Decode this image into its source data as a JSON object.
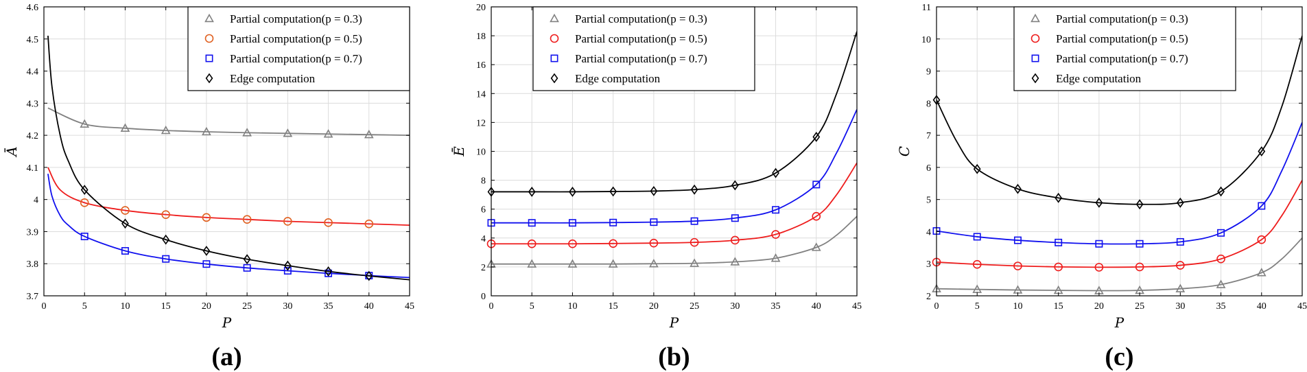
{
  "chart_data": [
    {
      "type": "line",
      "caption": "(a)",
      "xlabel": "P",
      "ylabel": "Ā",
      "xlim": [
        0,
        45
      ],
      "ylim": [
        3.7,
        4.6
      ],
      "xticks": [
        0,
        5,
        10,
        15,
        20,
        25,
        30,
        35,
        40,
        45
      ],
      "yticks": [
        3.7,
        3.8,
        3.9,
        4,
        4.1,
        4.2,
        4.3,
        4.4,
        4.5,
        4.6
      ],
      "ytick_labels": [
        "3.7",
        "3.8",
        "3.9",
        "4",
        "4.1",
        "4.2",
        "4.3",
        "4.4",
        "4.5",
        "4.6"
      ],
      "grid": true,
      "legend_position": "top-right",
      "series": [
        {
          "name": "Partial computation(p = 0.3)",
          "color": "#808080",
          "marker": "triangle",
          "x": [
            0.5,
            5,
            10,
            15,
            20,
            25,
            30,
            35,
            40,
            45
          ],
          "y": [
            4.285,
            4.235,
            4.222,
            4.215,
            4.211,
            4.208,
            4.206,
            4.204,
            4.202,
            4.2
          ],
          "marker_x": [
            5,
            10,
            15,
            20,
            25,
            30,
            35,
            40
          ]
        },
        {
          "name": "Partial computation(p = 0.5)",
          "color": "#ee1c1c",
          "marker_color": "#e06020",
          "marker": "circle",
          "x": [
            0.5,
            2,
            5,
            10,
            15,
            20,
            25,
            30,
            35,
            40,
            45
          ],
          "y": [
            4.1,
            4.03,
            3.99,
            3.966,
            3.953,
            3.944,
            3.938,
            3.932,
            3.928,
            3.924,
            3.92
          ],
          "marker_x": [
            5,
            10,
            15,
            20,
            25,
            30,
            35,
            40
          ]
        },
        {
          "name": "Partial computation(p = 0.7)",
          "color": "#1010ee",
          "marker": "square",
          "x": [
            0.5,
            1,
            2,
            3,
            5,
            10,
            15,
            20,
            25,
            30,
            35,
            40,
            45
          ],
          "y": [
            4.08,
            4.01,
            3.95,
            3.92,
            3.885,
            3.84,
            3.815,
            3.799,
            3.787,
            3.778,
            3.77,
            3.763,
            3.757
          ],
          "marker_x": [
            5,
            10,
            15,
            20,
            25,
            30,
            35,
            40
          ]
        },
        {
          "name": "Edge computation",
          "color": "#000000",
          "marker": "diamond",
          "x": [
            0.5,
            1,
            2,
            3,
            5,
            10,
            15,
            20,
            25,
            30,
            35,
            40,
            45
          ],
          "y": [
            4.51,
            4.35,
            4.2,
            4.12,
            4.03,
            3.925,
            3.875,
            3.84,
            3.814,
            3.794,
            3.776,
            3.762,
            3.75
          ],
          "marker_x": [
            5,
            10,
            15,
            20,
            25,
            30,
            35,
            40
          ]
        }
      ]
    },
    {
      "type": "line",
      "caption": "(b)",
      "xlabel": "P",
      "ylabel": "Ē",
      "xlim": [
        0,
        45
      ],
      "ylim": [
        0,
        20
      ],
      "xticks": [
        0,
        5,
        10,
        15,
        20,
        25,
        30,
        35,
        40,
        45
      ],
      "yticks": [
        0,
        2,
        4,
        6,
        8,
        10,
        12,
        14,
        16,
        18,
        20
      ],
      "ytick_labels": [
        "0",
        "2",
        "4",
        "6",
        "8",
        "10",
        "12",
        "14",
        "16",
        "18",
        "20"
      ],
      "grid": true,
      "legend_position": "top-left",
      "series": [
        {
          "name": "Partial computation(p = 0.3)",
          "color": "#808080",
          "marker": "triangle",
          "x": [
            0,
            5,
            10,
            15,
            20,
            25,
            30,
            35,
            40,
            42.5,
            45
          ],
          "y": [
            2.2,
            2.2,
            2.2,
            2.2,
            2.22,
            2.25,
            2.35,
            2.6,
            3.35,
            4.2,
            5.5
          ],
          "marker_x": [
            0,
            5,
            10,
            15,
            20,
            25,
            30,
            35,
            40
          ]
        },
        {
          "name": "Partial computation(p = 0.5)",
          "color": "#ee1c1c",
          "marker": "circle",
          "x": [
            0,
            5,
            10,
            15,
            20,
            25,
            30,
            35,
            40,
            42.5,
            45
          ],
          "y": [
            3.6,
            3.6,
            3.6,
            3.62,
            3.65,
            3.7,
            3.85,
            4.25,
            5.5,
            7,
            9.2
          ],
          "marker_x": [
            0,
            5,
            10,
            15,
            20,
            25,
            30,
            35,
            40
          ]
        },
        {
          "name": "Partial computation(p = 0.7)",
          "color": "#1010ee",
          "marker": "square",
          "x": [
            0,
            5,
            10,
            15,
            20,
            25,
            30,
            35,
            40,
            42.5,
            45
          ],
          "y": [
            5.05,
            5.05,
            5.05,
            5.07,
            5.1,
            5.17,
            5.38,
            5.95,
            7.7,
            9.9,
            12.9
          ],
          "marker_x": [
            0,
            5,
            10,
            15,
            20,
            25,
            30,
            35,
            40
          ]
        },
        {
          "name": "Edge computation",
          "color": "#000000",
          "marker": "diamond",
          "x": [
            0,
            5,
            10,
            15,
            20,
            25,
            30,
            35,
            40,
            42.5,
            45
          ],
          "y": [
            7.2,
            7.2,
            7.2,
            7.22,
            7.25,
            7.35,
            7.65,
            8.5,
            11,
            14,
            18.3
          ],
          "marker_x": [
            0,
            5,
            10,
            15,
            20,
            25,
            30,
            35,
            40
          ]
        }
      ]
    },
    {
      "type": "line",
      "caption": "(c)",
      "xlabel": "P",
      "ylabel": "C",
      "xlim": [
        0,
        45
      ],
      "ylim": [
        2,
        11
      ],
      "xticks": [
        0,
        5,
        10,
        15,
        20,
        25,
        30,
        35,
        40,
        45
      ],
      "yticks": [
        2,
        3,
        4,
        5,
        6,
        7,
        8,
        9,
        10,
        11
      ],
      "ytick_labels": [
        "2",
        "3",
        "4",
        "5",
        "6",
        "7",
        "8",
        "9",
        "10",
        "11"
      ],
      "grid": true,
      "legend_position": "top-center",
      "series": [
        {
          "name": "Partial computation(p = 0.3)",
          "color": "#808080",
          "marker": "triangle",
          "x": [
            0,
            5,
            10,
            15,
            20,
            25,
            30,
            35,
            40,
            42.5,
            45
          ],
          "y": [
            2.22,
            2.2,
            2.18,
            2.17,
            2.16,
            2.17,
            2.22,
            2.35,
            2.72,
            3.15,
            3.8
          ],
          "marker_x": [
            0,
            5,
            10,
            15,
            20,
            25,
            30,
            35,
            40
          ]
        },
        {
          "name": "Partial computation(p = 0.5)",
          "color": "#ee1c1c",
          "marker": "circle",
          "x": [
            0,
            5,
            10,
            15,
            20,
            25,
            30,
            35,
            40,
            42.5,
            45
          ],
          "y": [
            3.05,
            2.98,
            2.93,
            2.9,
            2.89,
            2.9,
            2.95,
            3.15,
            3.75,
            4.5,
            5.6
          ],
          "marker_x": [
            0,
            5,
            10,
            15,
            20,
            25,
            30,
            35,
            40
          ]
        },
        {
          "name": "Partial computation(p = 0.7)",
          "color": "#1010ee",
          "marker": "square",
          "x": [
            0,
            5,
            10,
            15,
            20,
            25,
            30,
            35,
            40,
            42.5,
            45
          ],
          "y": [
            4.02,
            3.84,
            3.73,
            3.66,
            3.62,
            3.62,
            3.68,
            3.96,
            4.8,
            5.9,
            7.4
          ],
          "marker_x": [
            0,
            5,
            10,
            15,
            20,
            25,
            30,
            35,
            40
          ]
        },
        {
          "name": "Edge computation",
          "color": "#000000",
          "marker": "diamond",
          "x": [
            0,
            2.5,
            5,
            10,
            15,
            20,
            25,
            30,
            35,
            40,
            42.5,
            45
          ],
          "y": [
            8.1,
            6.8,
            5.95,
            5.33,
            5.05,
            4.9,
            4.85,
            4.9,
            5.25,
            6.5,
            7.9,
            10.1
          ],
          "marker_x": [
            0,
            5,
            10,
            15,
            20,
            25,
            30,
            35,
            40
          ]
        }
      ]
    }
  ]
}
